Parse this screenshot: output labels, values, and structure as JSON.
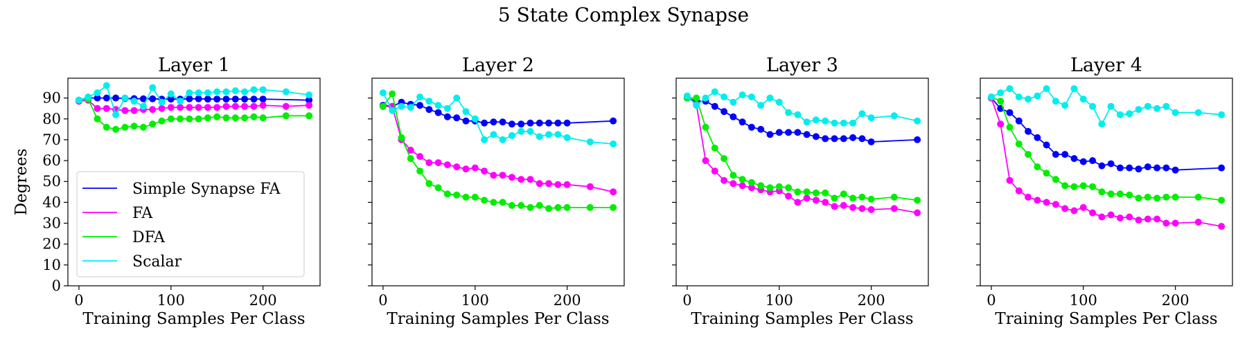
{
  "figure": {
    "title": "5 State Complex Synapse"
  },
  "chart_data": [
    {
      "type": "line",
      "title": "Layer 1",
      "xlabel": "Training Samples Per Class",
      "ylabel": "Degrees",
      "xlim": [
        -12,
        262
      ],
      "ylim": [
        0,
        99.5
      ],
      "xticks": [
        0,
        100,
        200
      ],
      "yticks": [
        0,
        10,
        20,
        30,
        40,
        50,
        60,
        70,
        80,
        90
      ],
      "show_yticklabels": true,
      "legend": "lower-left",
      "grid": false,
      "series": [
        {
          "name": "Simple Synapse FA",
          "color": "#0000ff",
          "x": [
            0,
            10,
            20,
            30,
            40,
            50,
            60,
            70,
            80,
            90,
            100,
            110,
            120,
            130,
            140,
            150,
            160,
            170,
            180,
            190,
            200,
            250
          ],
          "y": [
            89.0,
            90.0,
            90.0,
            90.0,
            90.0,
            89.8,
            89.7,
            89.6,
            89.6,
            89.5,
            89.5,
            89.5,
            89.6,
            89.6,
            89.5,
            89.5,
            89.5,
            89.5,
            89.5,
            89.5,
            89.5,
            89.0
          ]
        },
        {
          "name": "FA",
          "color": "#ff00ff",
          "x": [
            0,
            10,
            20,
            30,
            40,
            50,
            60,
            70,
            80,
            90,
            100,
            110,
            120,
            130,
            140,
            150,
            160,
            170,
            180,
            190,
            200,
            225,
            250
          ],
          "y": [
            88.5,
            89.0,
            85.0,
            85.0,
            84.5,
            84.0,
            84.0,
            84.5,
            84.5,
            85.0,
            85.5,
            85.5,
            85.5,
            85.5,
            85.5,
            85.5,
            86.0,
            86.0,
            86.0,
            86.0,
            86.5,
            86.0,
            86.5
          ]
        },
        {
          "name": "DFA",
          "color": "#00ee00",
          "x": [
            0,
            10,
            20,
            30,
            40,
            50,
            60,
            70,
            80,
            90,
            100,
            110,
            120,
            130,
            140,
            150,
            160,
            170,
            180,
            190,
            200,
            225,
            250
          ],
          "y": [
            89.0,
            89.5,
            80.0,
            76.0,
            75.0,
            76.0,
            76.5,
            76.0,
            77.5,
            79.0,
            80.0,
            80.0,
            80.0,
            80.0,
            80.5,
            81.0,
            80.5,
            80.5,
            80.5,
            81.0,
            80.5,
            81.5,
            81.5
          ]
        },
        {
          "name": "Scalar",
          "color": "#00eeee",
          "x": [
            0,
            10,
            20,
            30,
            40,
            50,
            60,
            70,
            80,
            90,
            100,
            110,
            120,
            130,
            140,
            150,
            160,
            170,
            180,
            190,
            200,
            225,
            250
          ],
          "y": [
            89.0,
            90.5,
            92.5,
            96.0,
            82.0,
            90.0,
            88.5,
            86.0,
            95.0,
            88.0,
            92.0,
            88.5,
            92.5,
            92.5,
            92.5,
            93.0,
            93.0,
            93.5,
            93.0,
            94.0,
            94.0,
            93.0,
            91.5
          ]
        }
      ]
    },
    {
      "type": "line",
      "title": "Layer 2",
      "xlabel": "Training Samples Per Class",
      "ylabel": "",
      "xlim": [
        -12,
        262
      ],
      "ylim": [
        0,
        99.5
      ],
      "xticks": [
        0,
        100,
        200
      ],
      "yticks": [
        0,
        10,
        20,
        30,
        40,
        50,
        60,
        70,
        80,
        90
      ],
      "show_yticklabels": false,
      "legend": "none",
      "grid": false,
      "series": [
        {
          "name": "Simple Synapse FA",
          "color": "#0000ff",
          "x": [
            0,
            10,
            20,
            30,
            40,
            50,
            60,
            70,
            80,
            90,
            100,
            110,
            120,
            130,
            140,
            150,
            160,
            170,
            180,
            190,
            200,
            250
          ],
          "y": [
            86.5,
            86.0,
            88.0,
            87.0,
            86.5,
            84.5,
            83.0,
            81.0,
            80.5,
            79.0,
            79.0,
            78.0,
            78.5,
            78.5,
            77.5,
            77.5,
            78.0,
            78.0,
            78.0,
            78.0,
            78.0,
            79.0
          ]
        },
        {
          "name": "FA",
          "color": "#ff00ff",
          "x": [
            0,
            10,
            20,
            30,
            40,
            50,
            60,
            70,
            80,
            90,
            100,
            110,
            120,
            130,
            140,
            150,
            160,
            170,
            180,
            190,
            200,
            225,
            250
          ],
          "y": [
            86.0,
            86.0,
            70.0,
            65.0,
            62.0,
            59.0,
            59.0,
            58.0,
            57.0,
            56.0,
            56.5,
            55.0,
            53.0,
            53.0,
            52.0,
            51.0,
            51.0,
            49.0,
            49.0,
            48.5,
            48.5,
            47.5,
            45.0
          ]
        },
        {
          "name": "DFA",
          "color": "#00ee00",
          "x": [
            0,
            10,
            20,
            30,
            40,
            50,
            60,
            70,
            80,
            90,
            100,
            110,
            120,
            130,
            140,
            150,
            160,
            170,
            180,
            190,
            200,
            225,
            250
          ],
          "y": [
            86.0,
            92.0,
            71.0,
            61.0,
            55.0,
            49.0,
            47.0,
            44.0,
            43.5,
            42.5,
            42.5,
            41.0,
            40.0,
            40.0,
            38.5,
            38.5,
            37.5,
            38.5,
            37.0,
            37.5,
            37.5,
            37.5,
            37.5
          ]
        },
        {
          "name": "Scalar",
          "color": "#00eeee",
          "x": [
            0,
            10,
            20,
            30,
            40,
            50,
            60,
            70,
            80,
            90,
            100,
            110,
            120,
            130,
            140,
            150,
            160,
            170,
            180,
            190,
            200,
            225,
            250
          ],
          "y": [
            92.5,
            84.0,
            86.0,
            85.5,
            90.5,
            88.5,
            86.5,
            85.0,
            90.0,
            83.5,
            80.0,
            70.0,
            72.5,
            70.0,
            72.0,
            74.0,
            74.0,
            71.5,
            72.5,
            72.5,
            71.0,
            69.0,
            68.0
          ]
        }
      ]
    },
    {
      "type": "line",
      "title": "Layer 3",
      "xlabel": "Training Samples Per Class",
      "ylabel": "",
      "xlim": [
        -12,
        262
      ],
      "ylim": [
        0,
        99.5
      ],
      "xticks": [
        0,
        100,
        200
      ],
      "yticks": [
        0,
        10,
        20,
        30,
        40,
        50,
        60,
        70,
        80,
        90
      ],
      "show_yticklabels": false,
      "legend": "none",
      "grid": false,
      "series": [
        {
          "name": "Simple Synapse FA",
          "color": "#0000ff",
          "x": [
            0,
            10,
            20,
            30,
            40,
            50,
            60,
            70,
            80,
            90,
            100,
            110,
            120,
            130,
            140,
            150,
            160,
            170,
            180,
            190,
            200,
            250
          ],
          "y": [
            90.0,
            88.5,
            88.5,
            86.0,
            83.5,
            81.0,
            78.5,
            76.0,
            75.0,
            72.5,
            73.5,
            73.5,
            73.5,
            72.5,
            71.5,
            70.5,
            70.5,
            70.5,
            71.0,
            70.5,
            69.0,
            70.0
          ]
        },
        {
          "name": "FA",
          "color": "#ff00ff",
          "x": [
            0,
            10,
            20,
            30,
            40,
            50,
            60,
            70,
            80,
            90,
            100,
            110,
            120,
            130,
            140,
            150,
            160,
            170,
            180,
            190,
            200,
            225,
            250
          ],
          "y": [
            90.5,
            87.0,
            60.0,
            55.0,
            50.5,
            49.0,
            48.0,
            47.0,
            46.0,
            45.0,
            45.5,
            43.0,
            40.0,
            42.0,
            41.0,
            40.0,
            38.0,
            38.5,
            37.5,
            37.0,
            36.5,
            37.0,
            35.0
          ]
        },
        {
          "name": "DFA",
          "color": "#00ee00",
          "x": [
            0,
            10,
            20,
            30,
            40,
            50,
            60,
            70,
            80,
            90,
            100,
            110,
            120,
            130,
            140,
            150,
            160,
            170,
            180,
            190,
            200,
            225,
            250
          ],
          "y": [
            90.0,
            90.0,
            76.0,
            66.0,
            61.0,
            53.0,
            51.0,
            49.5,
            48.0,
            47.0,
            47.5,
            47.0,
            45.0,
            45.0,
            44.5,
            44.5,
            42.0,
            44.0,
            42.0,
            42.5,
            41.5,
            42.5,
            41.0
          ]
        },
        {
          "name": "Scalar",
          "color": "#00eeee",
          "x": [
            0,
            10,
            20,
            30,
            40,
            50,
            60,
            70,
            80,
            90,
            100,
            110,
            120,
            130,
            140,
            150,
            160,
            170,
            180,
            190,
            200,
            225,
            250
          ],
          "y": [
            91.0,
            86.5,
            90.0,
            93.0,
            90.5,
            88.0,
            91.5,
            90.5,
            86.5,
            90.0,
            88.0,
            83.0,
            82.0,
            78.5,
            79.5,
            79.0,
            78.0,
            78.0,
            78.0,
            82.5,
            80.5,
            81.5,
            79.0
          ]
        }
      ]
    },
    {
      "type": "line",
      "title": "Layer 4",
      "xlabel": "Training Samples Per Class",
      "ylabel": "",
      "xlim": [
        -12,
        262
      ],
      "ylim": [
        0,
        99.5
      ],
      "xticks": [
        0,
        100,
        200
      ],
      "yticks": [
        0,
        10,
        20,
        30,
        40,
        50,
        60,
        70,
        80,
        90
      ],
      "show_yticklabels": false,
      "legend": "none",
      "grid": false,
      "series": [
        {
          "name": "Simple Synapse FA",
          "color": "#0000ff",
          "x": [
            0,
            10,
            20,
            30,
            40,
            50,
            60,
            70,
            80,
            90,
            100,
            110,
            120,
            130,
            140,
            150,
            160,
            170,
            180,
            190,
            200,
            250
          ],
          "y": [
            90.0,
            85.0,
            83.0,
            79.0,
            74.0,
            71.0,
            67.5,
            63.0,
            63.0,
            61.0,
            59.5,
            60.0,
            57.5,
            58.5,
            56.5,
            56.5,
            56.0,
            57.0,
            56.5,
            56.5,
            55.5,
            56.5
          ]
        },
        {
          "name": "FA",
          "color": "#ff00ff",
          "x": [
            0,
            10,
            20,
            30,
            40,
            50,
            60,
            70,
            80,
            90,
            100,
            110,
            120,
            130,
            140,
            150,
            160,
            170,
            180,
            190,
            200,
            225,
            250
          ],
          "y": [
            90.0,
            77.5,
            50.5,
            45.5,
            42.5,
            41.0,
            40.0,
            39.0,
            37.0,
            36.0,
            37.5,
            35.0,
            33.0,
            34.0,
            32.5,
            33.0,
            31.5,
            32.0,
            32.0,
            30.0,
            30.0,
            30.5,
            28.5
          ]
        },
        {
          "name": "DFA",
          "color": "#00ee00",
          "x": [
            0,
            10,
            20,
            30,
            40,
            50,
            60,
            70,
            80,
            90,
            100,
            110,
            120,
            130,
            140,
            150,
            160,
            170,
            180,
            190,
            200,
            225,
            250
          ],
          "y": [
            90.5,
            88.5,
            76.0,
            68.0,
            63.0,
            57.0,
            54.0,
            51.0,
            48.0,
            47.5,
            48.0,
            47.5,
            45.0,
            44.0,
            44.0,
            43.5,
            42.0,
            42.5,
            42.0,
            42.5,
            42.5,
            42.5,
            41.0
          ]
        },
        {
          "name": "Scalar",
          "color": "#00eeee",
          "x": [
            0,
            10,
            20,
            30,
            40,
            50,
            60,
            70,
            80,
            90,
            100,
            110,
            120,
            130,
            140,
            150,
            160,
            170,
            180,
            190,
            200,
            225,
            250
          ],
          "y": [
            90.5,
            92.5,
            94.5,
            90.5,
            89.5,
            91.0,
            94.5,
            88.5,
            86.5,
            94.5,
            89.5,
            86.0,
            77.5,
            86.0,
            82.0,
            82.5,
            84.5,
            86.0,
            85.0,
            86.0,
            83.0,
            83.0,
            82.0
          ]
        }
      ]
    }
  ]
}
